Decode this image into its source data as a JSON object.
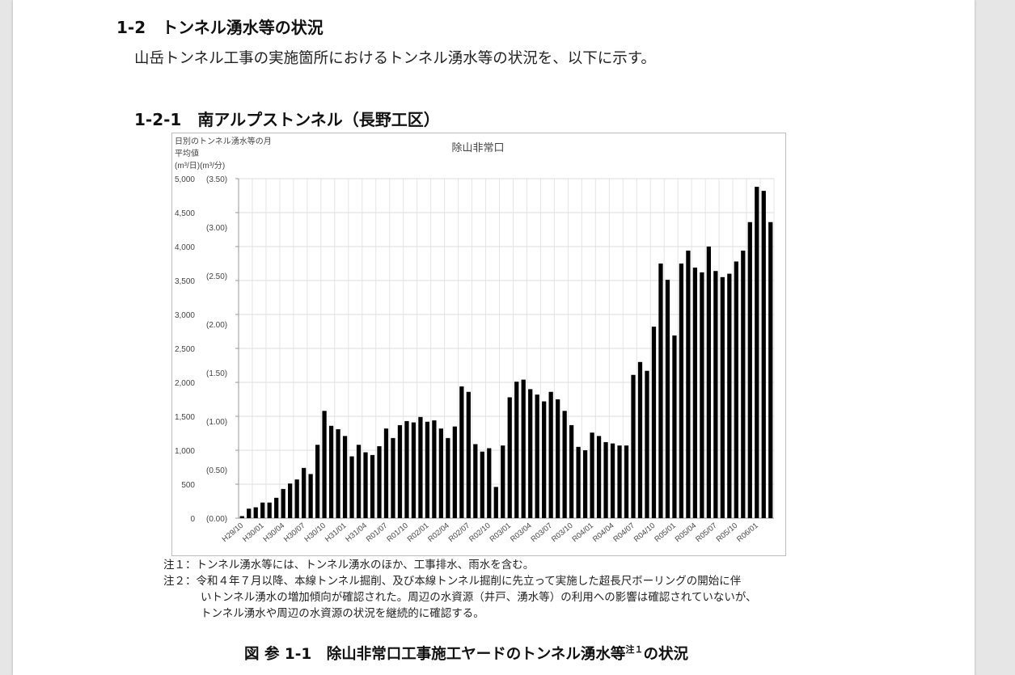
{
  "section": {
    "title": "1-2　トンネル湧水等の状況"
  },
  "intro": "山岳トンネル工事の実施箇所におけるトンネル湧水等の状況を、以下に示す。",
  "subsection": {
    "title": "1-2-1　南アルプストンネル（長野工区）"
  },
  "notes": {
    "note1": "注１：トンネル湧水等には、トンネル湧水のほか、工事排水、雨水を含む。",
    "note2_line1": "注２：令和４年７月以降、本線トンネル掘削、及び本線トンネル掘削に先立って実施した超長尺ボーリングの開始に伴",
    "note2_line2": "いトンネル湧水の増加傾向が確認された。周辺の水資源（井戸、湧水等）の利用への影響は確認されていないが、",
    "note2_line3": "トンネル湧水や周辺の水資源の状況を継続的に確認する。"
  },
  "caption": {
    "main": "図 参 1-1　除山非常口工事施工ヤードのトンネル湧水等",
    "sup": "注１",
    "tail": "の状況"
  },
  "chart_data": {
    "type": "bar",
    "title": "除山非常口",
    "ylabel_lines": [
      "日別のトンネル湧水等の月",
      "平均値",
      "(m³/日)(m³/分)"
    ],
    "y_left_ticks": [
      "0",
      "500",
      "1,000",
      "1,500",
      "2,000",
      "2,500",
      "3,000",
      "3,500",
      "4,000",
      "4,500",
      "5,000"
    ],
    "y_right_ticks": [
      "(0.00)",
      "(0.50)",
      "(1.00)",
      "(1.50)",
      "(2.00)",
      "(2.50)",
      "(3.00)",
      "(3.50)"
    ],
    "ylim": [
      0,
      5000
    ],
    "grid": true,
    "bar_color": "#000000",
    "x_tick_labels": [
      "H29/10",
      "H30/01",
      "H30/04",
      "H30/07",
      "H30/10",
      "H31/01",
      "H31/04",
      "R01/07",
      "R01/10",
      "R02/01",
      "R02/04",
      "R02/07",
      "R02/10",
      "R03/01",
      "R03/04",
      "R03/07",
      "R03/10",
      "R04/01",
      "R04/04",
      "R04/07",
      "R04/10",
      "R05/01",
      "R05/04",
      "R05/07",
      "R05/10",
      "R06/01"
    ],
    "values": [
      30,
      140,
      160,
      230,
      230,
      300,
      430,
      510,
      570,
      740,
      650,
      1080,
      1580,
      1360,
      1310,
      1210,
      910,
      1080,
      970,
      930,
      1060,
      1320,
      1180,
      1370,
      1430,
      1410,
      1490,
      1420,
      1440,
      1320,
      1180,
      1350,
      1940,
      1860,
      1090,
      980,
      1030,
      460,
      1070,
      1780,
      2010,
      2040,
      1900,
      1820,
      1720,
      1860,
      1750,
      1580,
      1370,
      1050,
      1000,
      1260,
      1210,
      1120,
      1100,
      1070,
      1070,
      2110,
      2300,
      2170,
      2820,
      3750,
      3510,
      2690,
      3750,
      3940,
      3690,
      3620,
      4000,
      3640,
      3550,
      3600,
      3780,
      3940,
      4360,
      4880,
      4820,
      4360
    ]
  }
}
